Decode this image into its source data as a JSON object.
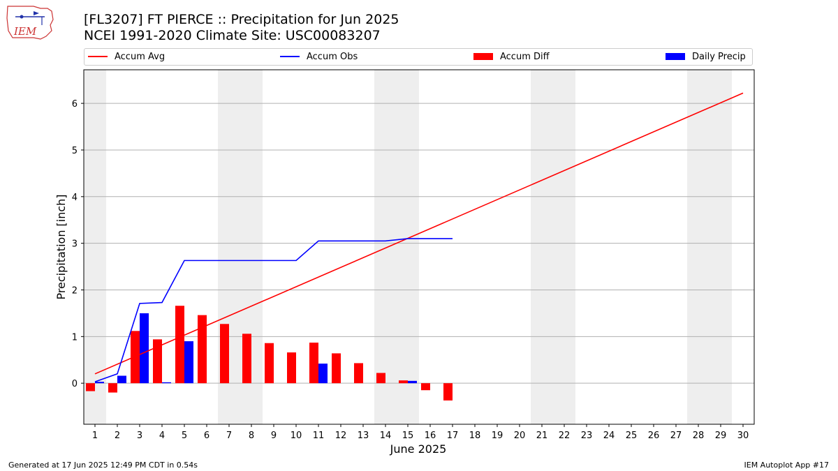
{
  "title_line1": "[FL3207] FT PIERCE :: Precipitation for Jun 2025",
  "title_line2": "NCEI 1991-2020 Climate Site: USC00083207",
  "logo_text": "IEM",
  "legend": [
    {
      "label": "Accum Avg",
      "color": "#ff0000",
      "kind": "line"
    },
    {
      "label": "Accum Obs",
      "color": "#0000ff",
      "kind": "line"
    },
    {
      "label": "Accum Diff",
      "color": "#ff0000",
      "kind": "box"
    },
    {
      "label": "Daily Precip",
      "color": "#0000ff",
      "kind": "box"
    }
  ],
  "footer_left": "Generated at 17 Jun 2025 12:49 PM CDT in 0.54s",
  "footer_right": "IEM Autoplot App #17",
  "chart_data": {
    "type": "bar",
    "xlabel": "June 2025",
    "ylabel": "Precipitation [inch]",
    "ylim": [
      -0.88,
      6.72
    ],
    "xlim": [
      0.5,
      30.5
    ],
    "yticks": [
      0,
      1,
      2,
      3,
      4,
      5,
      6
    ],
    "xticks": [
      1,
      2,
      3,
      4,
      5,
      6,
      7,
      8,
      9,
      10,
      11,
      12,
      13,
      14,
      15,
      16,
      17,
      18,
      19,
      20,
      21,
      22,
      23,
      24,
      25,
      26,
      27,
      28,
      29,
      30
    ],
    "weekend_shading": [
      [
        0.5,
        1.5
      ],
      [
        6.5,
        8.5
      ],
      [
        13.5,
        15.5
      ],
      [
        20.5,
        22.5
      ],
      [
        27.5,
        29.5
      ]
    ],
    "grid": "y",
    "legend_position": "top",
    "colors": {
      "avg": "#ff0000",
      "obs": "#0000ff",
      "diff": "#ff0000",
      "daily": "#0000ff",
      "shade": "#eeeeee",
      "grid": "#b0b0b0"
    },
    "accum_avg": {
      "x": [
        1,
        30
      ],
      "values": [
        0.2,
        6.22
      ]
    },
    "accum_obs": {
      "x": [
        1,
        2,
        3,
        4,
        5,
        6,
        7,
        8,
        9,
        10,
        11,
        12,
        13,
        14,
        15,
        16,
        17
      ],
      "values": [
        0.03,
        0.2,
        1.71,
        1.73,
        2.63,
        2.63,
        2.63,
        2.63,
        2.63,
        2.63,
        3.05,
        3.05,
        3.05,
        3.05,
        3.1,
        3.1,
        3.1
      ]
    },
    "accum_diff": {
      "x": [
        1,
        2,
        3,
        4,
        5,
        6,
        7,
        8,
        9,
        10,
        11,
        12,
        13,
        14,
        15,
        16,
        17
      ],
      "values": [
        -0.17,
        -0.2,
        1.12,
        0.94,
        1.66,
        1.46,
        1.27,
        1.06,
        0.86,
        0.66,
        0.87,
        0.64,
        0.43,
        0.22,
        0.06,
        -0.15,
        -0.37
      ]
    },
    "daily_precip": {
      "x": [
        1,
        2,
        3,
        4,
        5,
        6,
        7,
        8,
        9,
        10,
        11,
        12,
        13,
        14,
        15,
        16,
        17
      ],
      "values": [
        0.03,
        0.16,
        1.5,
        0.02,
        0.9,
        0,
        0,
        0,
        0,
        0,
        0.42,
        0,
        0,
        0,
        0.05,
        0,
        0
      ]
    }
  }
}
